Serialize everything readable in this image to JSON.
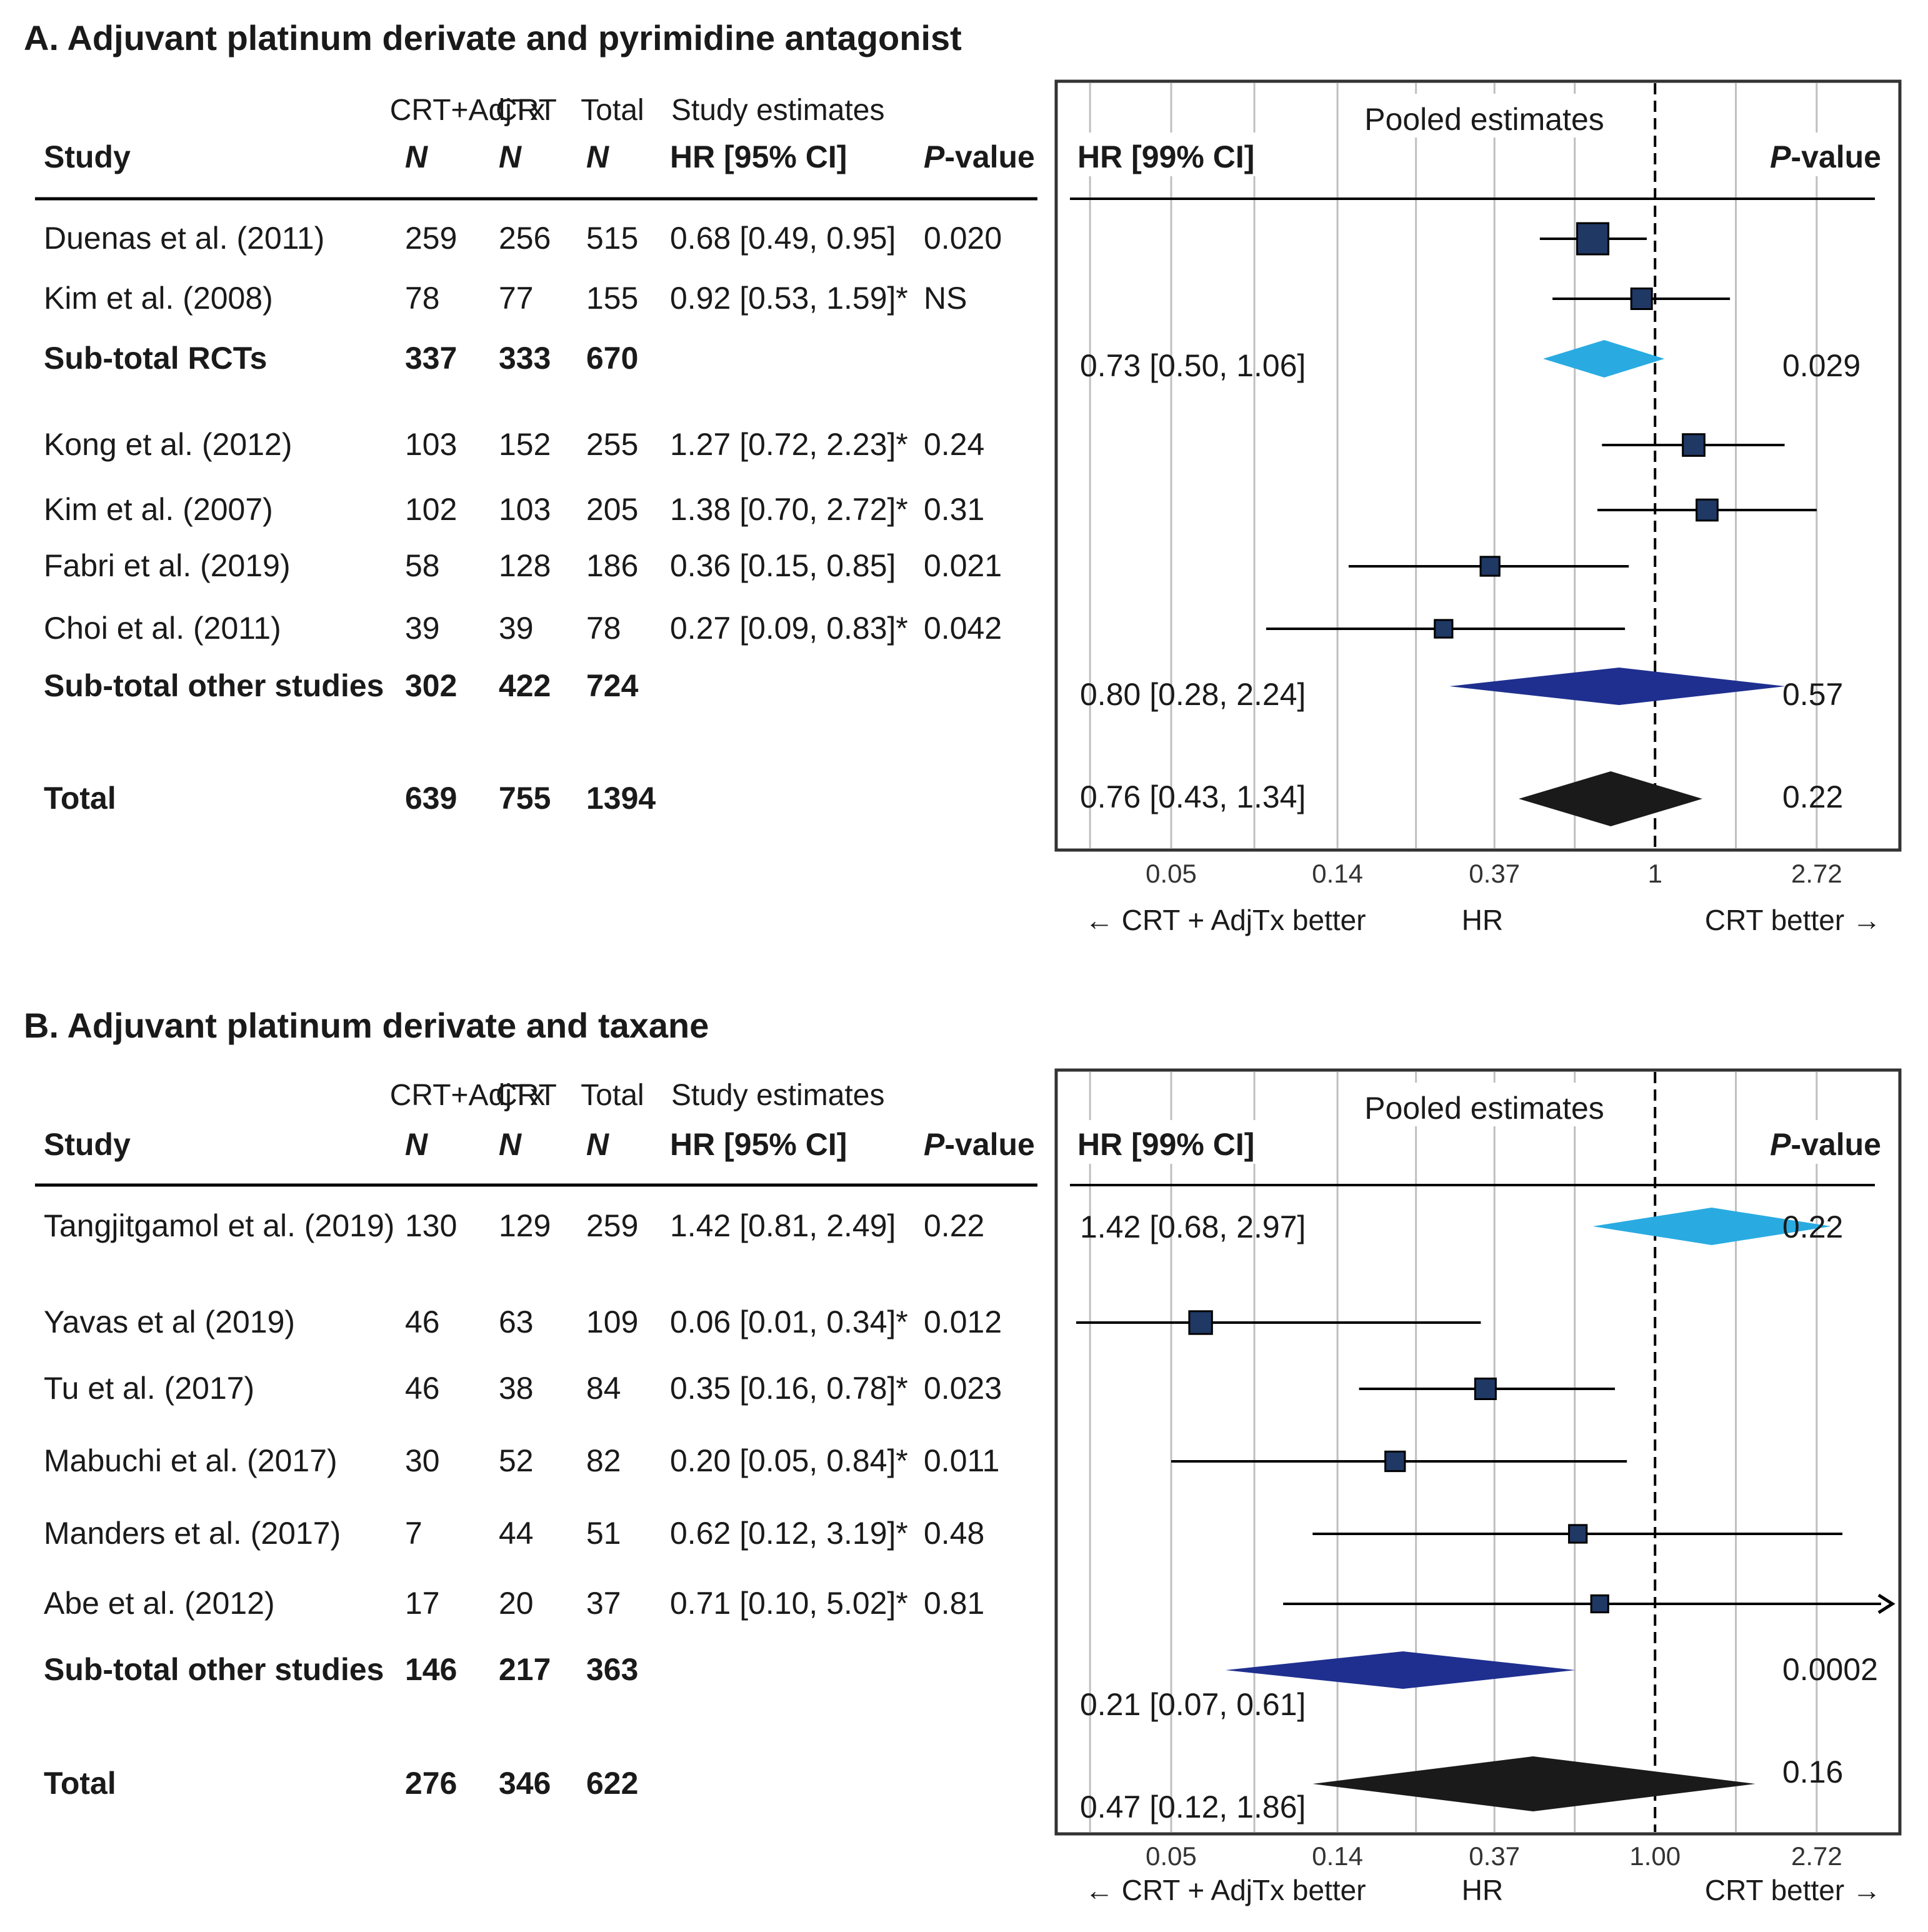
{
  "chart_data": [
    {
      "type": "forest",
      "title": "A. Adjuvant platinum derivate and pyrimidine antagonist",
      "table_headers": {
        "top": [
          "CRT+AdjTx",
          "CRT",
          "Total",
          "Study estimates"
        ],
        "bottom": [
          "Study",
          "N",
          "N",
          "N",
          "HR [95% CI]",
          "P-value"
        ]
      },
      "pooled_header": {
        "title": "Pooled estimates",
        "hr_label": "HR [99% CI]",
        "p_label": "P-value"
      },
      "x_ticks": [
        "0.05",
        "0.14",
        "0.37",
        "1",
        "2.72"
      ],
      "x_tick_values": [
        0.05,
        0.14,
        0.37,
        1,
        2.72
      ],
      "xlim": [
        0.03,
        3.9
      ],
      "scale": "log",
      "reference_line": 1,
      "direction_labels": {
        "left": "← CRT + AdjTx better",
        "center": "HR",
        "right": "CRT better →"
      },
      "rows": [
        {
          "kind": "study",
          "name": "Duenas et al. (2011)",
          "n1": "259",
          "n2": "256",
          "total": "515",
          "est_text": "0.68 [0.49, 0.95]",
          "p": "0.020",
          "hr": 0.68,
          "lo": 0.49,
          "hi": 0.95,
          "weight": 1.0
        },
        {
          "kind": "study",
          "name": "Kim et al. (2008)",
          "n1": "78",
          "n2": "77",
          "total": "155",
          "est_text": "0.92 [0.53, 1.59]*",
          "p": "NS",
          "hr": 0.92,
          "lo": 0.53,
          "hi": 1.59,
          "weight": 0.5
        },
        {
          "kind": "pooled",
          "name": "Sub-total RCTs",
          "n1": "337",
          "n2": "333",
          "total": "670",
          "pooled_text": "0.73 [0.50, 1.06]",
          "pooled_p": "0.029",
          "hr": 0.73,
          "lo": 0.5,
          "hi": 1.06,
          "color": "#29abe2"
        },
        {
          "kind": "study",
          "name": "Kong et al. (2012)",
          "n1": "103",
          "n2": "152",
          "total": "255",
          "est_text": "1.27 [0.72, 2.23]*",
          "p": "0.24",
          "hr": 1.27,
          "lo": 0.72,
          "hi": 2.23,
          "weight": 0.55
        },
        {
          "kind": "study",
          "name": "Kim et al. (2007)",
          "n1": "102",
          "n2": "103",
          "total": "205",
          "est_text": "1.38 [0.70, 2.72]*",
          "p": "0.31",
          "hr": 1.38,
          "lo": 0.7,
          "hi": 2.72,
          "weight": 0.52
        },
        {
          "kind": "study",
          "name": "Fabri et al. (2019)",
          "n1": "58",
          "n2": "128",
          "total": "186",
          "est_text": "0.36 [0.15, 0.85]",
          "p": "0.021",
          "hr": 0.36,
          "lo": 0.15,
          "hi": 0.85,
          "weight": 0.42
        },
        {
          "kind": "study",
          "name": "Choi et al. (2011)",
          "n1": "39",
          "n2": "39",
          "total": "78",
          "est_text": "0.27 [0.09, 0.83]*",
          "p": "0.042",
          "hr": 0.27,
          "lo": 0.09,
          "hi": 0.83,
          "weight": 0.36
        },
        {
          "kind": "pooled",
          "name": "Sub-total other studies",
          "n1": "302",
          "n2": "422",
          "total": "724",
          "pooled_text": "0.80 [0.28, 2.24]",
          "pooled_p": "0.57",
          "hr": 0.8,
          "lo": 0.28,
          "hi": 2.24,
          "color": "#1f2f8f"
        },
        {
          "kind": "pooled",
          "name": "Total",
          "n1": "639",
          "n2": "755",
          "total": "1394",
          "pooled_text": "0.76 [0.43, 1.34]",
          "pooled_p": "0.22",
          "hr": 0.76,
          "lo": 0.43,
          "hi": 1.34,
          "color": "#1a1a1a"
        }
      ]
    },
    {
      "type": "forest",
      "title": "B. Adjuvant platinum derivate and taxane",
      "table_headers": {
        "top": [
          "CRT+AdjTx",
          "CRT",
          "Total",
          "Study estimates"
        ],
        "bottom": [
          "Study",
          "N",
          "N",
          "N",
          "HR [95% CI]",
          "P-value"
        ]
      },
      "pooled_header": {
        "title": "Pooled estimates",
        "hr_label": "HR [99% CI]",
        "p_label": "P-value"
      },
      "x_ticks": [
        "0.05",
        "0.14",
        "0.37",
        "1.00",
        "2.72"
      ],
      "x_tick_values": [
        0.05,
        0.14,
        0.37,
        1,
        2.72
      ],
      "xlim": [
        0.03,
        3.9
      ],
      "scale": "log",
      "reference_line": 1,
      "direction_labels": {
        "left": "← CRT + AdjTx better",
        "center": "HR",
        "right": "CRT better →"
      },
      "rows": [
        {
          "kind": "pooled",
          "name": "Tangjitgamol et al. (2019)",
          "n1": "130",
          "n2": "129",
          "total": "259",
          "est_text": "1.42 [0.81, 2.49]",
          "p": "0.22",
          "pooled_text": "1.42 [0.68, 2.97]",
          "pooled_p": "0.22",
          "hr": 1.42,
          "lo": 0.68,
          "hi": 2.97,
          "color": "#29abe2"
        },
        {
          "kind": "study",
          "name": "Yavas et al (2019)",
          "n1": "46",
          "n2": "63",
          "total": "109",
          "est_text": "0.06 [0.01, 0.34]*",
          "p": "0.012",
          "hr": 0.06,
          "lo": 0.01,
          "hi": 0.34,
          "weight": 0.6
        },
        {
          "kind": "study",
          "name": "Tu et al. (2017)",
          "n1": "46",
          "n2": "38",
          "total": "84",
          "est_text": "0.35 [0.16, 0.78]*",
          "p": "0.023",
          "hr": 0.35,
          "lo": 0.16,
          "hi": 0.78,
          "weight": 0.5
        },
        {
          "kind": "study",
          "name": "Mabuchi et al. (2017)",
          "n1": "30",
          "n2": "52",
          "total": "82",
          "est_text": "0.20 [0.05, 0.84]*",
          "p": "0.011",
          "hr": 0.2,
          "lo": 0.05,
          "hi": 0.84,
          "weight": 0.45
        },
        {
          "kind": "study",
          "name": "Manders et al. (2017)",
          "n1": "7",
          "n2": "44",
          "total": "51",
          "est_text": "0.62 [0.12, 3.19]*",
          "p": "0.48",
          "hr": 0.62,
          "lo": 0.12,
          "hi": 3.19,
          "weight": 0.36
        },
        {
          "kind": "study",
          "name": "Abe et al. (2012)",
          "n1": "17",
          "n2": "20",
          "total": "37",
          "est_text": "0.71 [0.10, 5.02]*",
          "p": "0.81",
          "hr": 0.71,
          "lo": 0.1,
          "hi": 5.02,
          "weight": 0.33,
          "arrow_right": true
        },
        {
          "kind": "pooled",
          "name": "Sub-total other studies",
          "n1": "146",
          "n2": "217",
          "total": "363",
          "pooled_text": "0.21 [0.07, 0.61]",
          "pooled_p": "0.0002",
          "hr": 0.21,
          "lo": 0.07,
          "hi": 0.61,
          "color": "#1f2f8f"
        },
        {
          "kind": "pooled",
          "name": "Total",
          "n1": "276",
          "n2": "346",
          "total": "622",
          "pooled_text": "0.47 [0.12, 1.86]",
          "pooled_p": "0.16",
          "hr": 0.47,
          "lo": 0.12,
          "hi": 1.86,
          "color": "#1a1a1a"
        }
      ]
    }
  ],
  "colors": {
    "study_box": "#1f3864",
    "grid": "#bfbfbf",
    "text": "#1a1a1a"
  }
}
